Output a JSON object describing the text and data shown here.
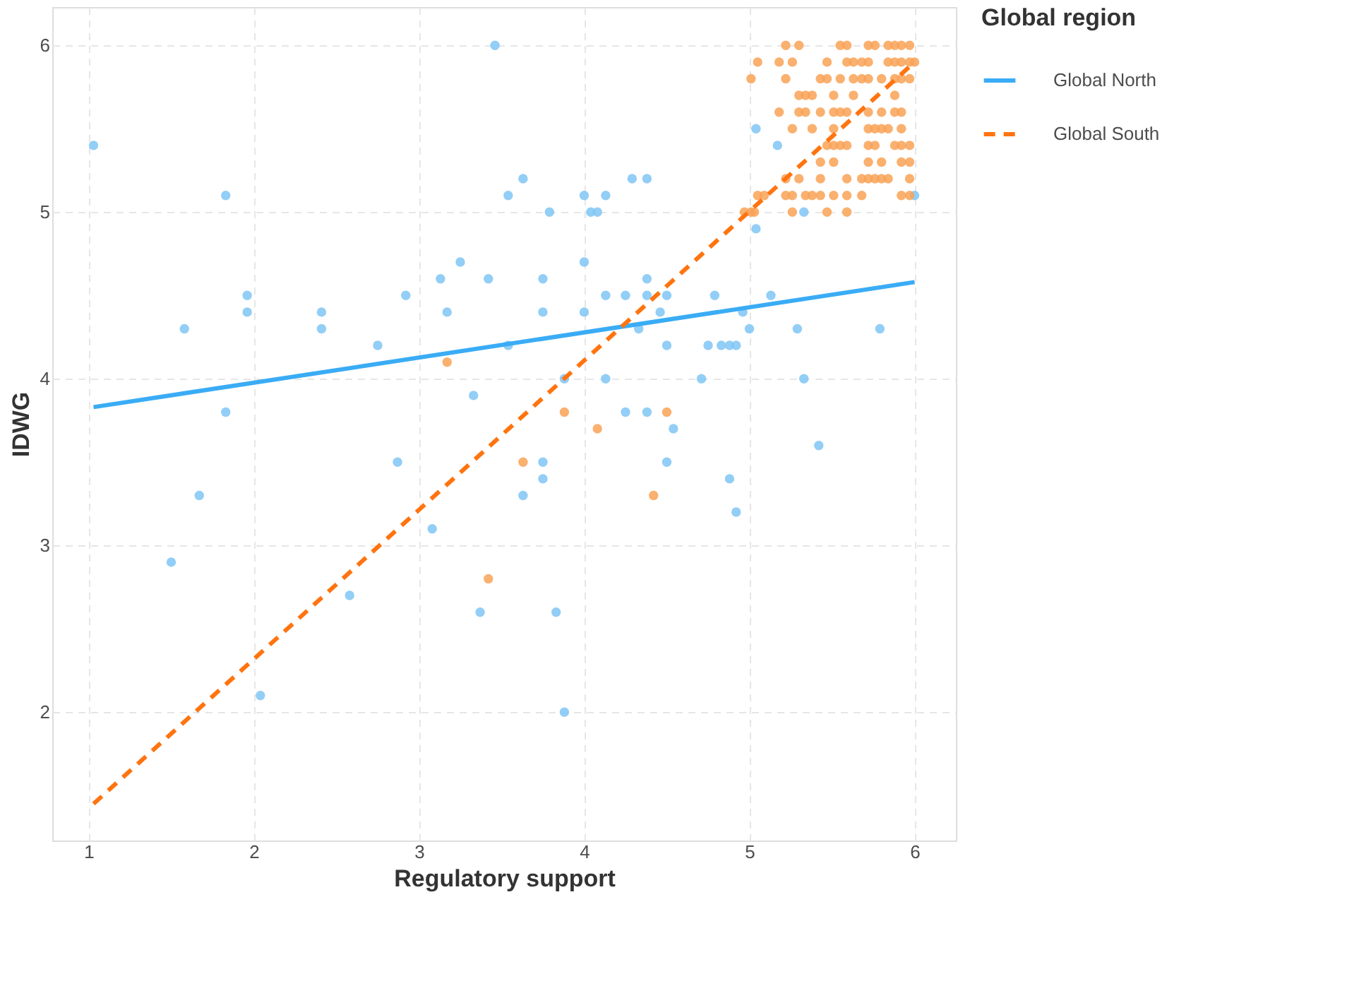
{
  "chart_data": {
    "type": "scatter",
    "xlabel": "Regulatory support",
    "ylabel": "IDWG",
    "legend_title": "Global region",
    "legend": "right",
    "grid": true,
    "xlim": [
      0.78,
      6.25
    ],
    "ylim": [
      1.23,
      6.23
    ],
    "xticks": [
      1,
      2,
      3,
      4,
      5,
      6
    ],
    "yticks": [
      2,
      3,
      4,
      5,
      6
    ],
    "series": [
      {
        "color": "#7fc6f5",
        "marker": "circle",
        "x": [
          1.03,
          1.5,
          1.58,
          1.67,
          1.83,
          1.83,
          1.96,
          1.96,
          2.04,
          2.41,
          2.41,
          2.58,
          2.75,
          2.87,
          2.92,
          3.08,
          3.13,
          3.17,
          3.25,
          3.33,
          3.37,
          3.42,
          3.46,
          3.54,
          3.54,
          3.63,
          3.63,
          3.75,
          3.75,
          3.75,
          3.75,
          3.79,
          3.83,
          3.88,
          3.88,
          4.0,
          4.0,
          4.04,
          4.08,
          4.0,
          4.13,
          4.13,
          4.13,
          4.25,
          4.25,
          4.29,
          4.33,
          4.38,
          4.38,
          4.38,
          4.38,
          4.46,
          4.5,
          4.5,
          4.5,
          4.54,
          4.71,
          4.75,
          4.79,
          4.83,
          4.88,
          4.88,
          4.92,
          4.92,
          4.96,
          5.0,
          5.04,
          5.04,
          5.13,
          5.17,
          5.29,
          5.33,
          5.33,
          5.42,
          5.79,
          6.0
        ],
        "values": [
          5.4,
          2.9,
          4.3,
          3.3,
          5.1,
          3.8,
          4.5,
          4.4,
          2.1,
          4.4,
          4.3,
          2.7,
          4.2,
          3.5,
          4.5,
          3.1,
          4.6,
          4.4,
          4.7,
          3.9,
          2.6,
          4.6,
          6.0,
          5.1,
          4.2,
          5.2,
          3.3,
          4.6,
          4.4,
          3.5,
          3.4,
          5.0,
          2.6,
          4.0,
          2.0,
          5.1,
          4.7,
          5.0,
          5.0,
          4.4,
          5.1,
          4.5,
          4.0,
          4.5,
          3.8,
          5.2,
          4.3,
          5.2,
          4.6,
          4.5,
          3.8,
          4.4,
          4.5,
          4.2,
          3.5,
          3.7,
          4.0,
          4.2,
          4.5,
          4.2,
          3.4,
          4.2,
          4.2,
          3.2,
          4.4,
          4.3,
          4.9,
          5.5,
          4.5,
          5.4,
          4.3,
          5.0,
          4.0,
          3.6,
          4.3,
          5.1
        ]
      },
      {
        "color": "#f9a256",
        "marker": "circle",
        "x": [
          3.17,
          3.42,
          3.63,
          3.88,
          4.08,
          4.42,
          4.5,
          5.22,
          5.3,
          5.55,
          5.59,
          5.72,
          5.76,
          5.84,
          5.88,
          5.92,
          5.97,
          5.05,
          5.18,
          5.26,
          5.47,
          5.59,
          5.63,
          5.68,
          5.72,
          5.84,
          5.88,
          5.92,
          5.97,
          6.0,
          5.01,
          5.22,
          5.43,
          5.47,
          5.55,
          5.63,
          5.68,
          5.72,
          5.8,
          5.88,
          5.92,
          5.97,
          5.3,
          5.34,
          5.38,
          5.51,
          5.63,
          5.88,
          5.18,
          5.3,
          5.34,
          5.43,
          5.51,
          5.55,
          5.59,
          5.72,
          5.8,
          5.88,
          5.92,
          5.26,
          5.38,
          5.51,
          5.72,
          5.76,
          5.8,
          5.84,
          5.92,
          5.47,
          5.51,
          5.55,
          5.59,
          5.72,
          5.76,
          5.88,
          5.92,
          5.97,
          5.43,
          5.51,
          5.72,
          5.8,
          5.92,
          5.97,
          5.22,
          5.3,
          5.43,
          5.59,
          5.68,
          5.72,
          5.76,
          5.8,
          5.84,
          5.97,
          5.05,
          5.09,
          5.22,
          5.26,
          5.34,
          5.38,
          5.43,
          5.51,
          5.59,
          5.68,
          5.92,
          5.97,
          4.97,
          5.01,
          5.03,
          5.26,
          5.47,
          5.59
        ],
        "values": [
          4.1,
          2.8,
          3.5,
          3.8,
          3.7,
          3.3,
          3.8,
          6.0,
          6.0,
          6.0,
          6.0,
          6.0,
          6.0,
          6.0,
          6.0,
          6.0,
          6.0,
          5.9,
          5.9,
          5.9,
          5.9,
          5.9,
          5.9,
          5.9,
          5.9,
          5.9,
          5.9,
          5.9,
          5.9,
          5.9,
          5.8,
          5.8,
          5.8,
          5.8,
          5.8,
          5.8,
          5.8,
          5.8,
          5.8,
          5.8,
          5.8,
          5.8,
          5.7,
          5.7,
          5.7,
          5.7,
          5.7,
          5.7,
          5.6,
          5.6,
          5.6,
          5.6,
          5.6,
          5.6,
          5.6,
          5.6,
          5.6,
          5.6,
          5.6,
          5.5,
          5.5,
          5.5,
          5.5,
          5.5,
          5.5,
          5.5,
          5.5,
          5.4,
          5.4,
          5.4,
          5.4,
          5.4,
          5.4,
          5.4,
          5.4,
          5.4,
          5.3,
          5.3,
          5.3,
          5.3,
          5.3,
          5.3,
          5.2,
          5.2,
          5.2,
          5.2,
          5.2,
          5.2,
          5.2,
          5.2,
          5.2,
          5.2,
          5.1,
          5.1,
          5.1,
          5.1,
          5.1,
          5.1,
          5.1,
          5.1,
          5.1,
          5.1,
          5.1,
          5.1,
          5.0,
          5.0,
          5.0,
          5.0,
          5.0,
          5.0
        ]
      },
      {
        "type": "line",
        "name": "Global North",
        "color": "#3aacf5",
        "line_style": "solid",
        "marker": "none",
        "x": [
          1.03,
          6.0
        ],
        "values": [
          3.83,
          4.58
        ]
      },
      {
        "type": "line",
        "name": "Global South",
        "color": "#ff7410",
        "line_style": "dashed",
        "marker": "none",
        "x": [
          1.03,
          6.0
        ],
        "values": [
          1.45,
          5.9
        ]
      }
    ]
  }
}
